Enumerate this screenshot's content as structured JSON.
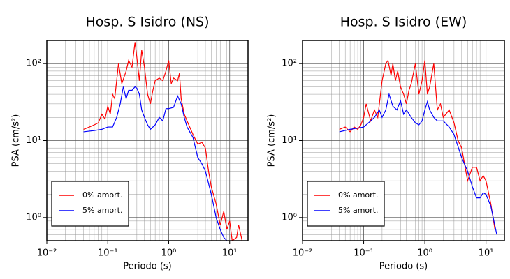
{
  "chart_data": [
    {
      "type": "line",
      "title": "Hosp. S Isidro (NS)",
      "x_label": "Periodo (s)",
      "y_label": "PSA (cm/s²)",
      "x_log": true,
      "y_log": true,
      "grid": true,
      "minor_grid": true,
      "legend": "lower left",
      "xlim": [
        0.01,
        20
      ],
      "ylim": [
        0.5,
        200
      ],
      "xticks": [
        {
          "value": 0.01,
          "label": "10⁻²"
        },
        {
          "value": 0.1,
          "label": "10⁻¹"
        },
        {
          "value": 1,
          "label": "10⁰"
        },
        {
          "value": 10,
          "label": "10¹"
        }
      ],
      "yticks": [
        {
          "value": 1,
          "label": "10⁰"
        },
        {
          "value": 10,
          "label": "10¹"
        },
        {
          "value": 100,
          "label": "10²"
        }
      ],
      "series": [
        {
          "name": "0% amort.",
          "color": "#ff0000",
          "x": [
            0.04,
            0.05,
            0.06,
            0.07,
            0.08,
            0.09,
            0.1,
            0.11,
            0.12,
            0.13,
            0.15,
            0.17,
            0.2,
            0.22,
            0.25,
            0.28,
            0.3,
            0.33,
            0.36,
            0.4,
            0.45,
            0.5,
            0.55,
            0.6,
            0.7,
            0.8,
            0.9,
            1.0,
            1.1,
            1.2,
            1.4,
            1.5,
            1.6,
            1.8,
            2.0,
            2.5,
            3.0,
            3.5,
            4.0,
            4.5,
            5.0,
            6.0,
            7.0,
            8.0,
            9.0,
            10,
            11,
            13,
            14,
            16
          ],
          "values": [
            14,
            15,
            16,
            17,
            22,
            19,
            28,
            22,
            40,
            35,
            100,
            55,
            80,
            110,
            90,
            190,
            120,
            60,
            150,
            90,
            40,
            30,
            45,
            60,
            65,
            60,
            80,
            110,
            55,
            65,
            60,
            75,
            35,
            22,
            18,
            12,
            9,
            9.5,
            8,
            4,
            2.5,
            1.5,
            0.8,
            1.2,
            0.7,
            0.9,
            0.5,
            0.55,
            0.8,
            0.5
          ]
        },
        {
          "name": "5% amort.",
          "color": "#0000ff",
          "x": [
            0.04,
            0.06,
            0.08,
            0.1,
            0.12,
            0.14,
            0.16,
            0.18,
            0.2,
            0.22,
            0.25,
            0.28,
            0.3,
            0.33,
            0.36,
            0.4,
            0.45,
            0.5,
            0.6,
            0.7,
            0.8,
            0.9,
            1.0,
            1.2,
            1.4,
            1.6,
            1.8,
            2.0,
            2.5,
            3.0,
            3.5,
            4.0,
            5.0,
            6.0,
            7.0,
            8.0,
            9.0
          ],
          "values": [
            13,
            13.5,
            14,
            15,
            15,
            20,
            30,
            50,
            35,
            45,
            45,
            50,
            48,
            40,
            25,
            20,
            16,
            14,
            16,
            20,
            18,
            26,
            26,
            27,
            38,
            30,
            20,
            15,
            11,
            6,
            5,
            4,
            2,
            1,
            0.7,
            0.55,
            0.5
          ]
        }
      ]
    },
    {
      "type": "line",
      "title": "Hosp. S Isidro (EW)",
      "x_label": "Periodo (s)",
      "y_label": "PSA (cm/s²)",
      "x_log": true,
      "y_log": true,
      "grid": true,
      "minor_grid": true,
      "legend": "lower left",
      "xlim": [
        0.01,
        20
      ],
      "ylim": [
        0.5,
        200
      ],
      "xticks": [
        {
          "value": 0.01,
          "label": "10⁻²"
        },
        {
          "value": 0.1,
          "label": "10⁻¹"
        },
        {
          "value": 1,
          "label": "10⁰"
        },
        {
          "value": 10,
          "label": "10¹"
        }
      ],
      "yticks": [
        {
          "value": 1,
          "label": "10⁰"
        },
        {
          "value": 10,
          "label": "10¹"
        },
        {
          "value": 100,
          "label": "10²"
        }
      ],
      "series": [
        {
          "name": "0% amort.",
          "color": "#ff0000",
          "x": [
            0.04,
            0.05,
            0.06,
            0.07,
            0.08,
            0.09,
            0.1,
            0.11,
            0.13,
            0.15,
            0.17,
            0.2,
            0.23,
            0.25,
            0.28,
            0.3,
            0.33,
            0.36,
            0.4,
            0.45,
            0.5,
            0.55,
            0.6,
            0.7,
            0.8,
            0.9,
            1.0,
            1.1,
            1.2,
            1.4,
            1.6,
            1.8,
            2.0,
            2.5,
            3.0,
            3.5,
            4.0,
            5.0,
            6.0,
            7.0,
            8.0,
            9.0,
            10,
            12,
            14
          ],
          "values": [
            14,
            15,
            13,
            15,
            14,
            16,
            20,
            30,
            18,
            25,
            20,
            60,
            100,
            110,
            70,
            100,
            60,
            80,
            50,
            40,
            30,
            45,
            55,
            100,
            40,
            60,
            110,
            40,
            50,
            100,
            25,
            30,
            20,
            25,
            17,
            10,
            8,
            3,
            4.5,
            4.5,
            3,
            3.5,
            3,
            1.5,
            0.7
          ]
        },
        {
          "name": "5% amort.",
          "color": "#0000ff",
          "x": [
            0.04,
            0.06,
            0.08,
            0.1,
            0.12,
            0.15,
            0.18,
            0.2,
            0.23,
            0.26,
            0.3,
            0.35,
            0.4,
            0.45,
            0.5,
            0.6,
            0.7,
            0.8,
            0.9,
            1.0,
            1.1,
            1.2,
            1.4,
            1.6,
            2.0,
            2.5,
            3.0,
            4.0,
            5.0,
            6.0,
            7.0,
            8.0,
            9.0,
            10,
            12,
            15
          ],
          "values": [
            13,
            14,
            14.5,
            15,
            17,
            20,
            25,
            20,
            25,
            40,
            28,
            25,
            33,
            22,
            25,
            20,
            17,
            16,
            18,
            25,
            32,
            25,
            20,
            18,
            18,
            15,
            12,
            6,
            4,
            2.5,
            1.8,
            1.8,
            2.1,
            2,
            1.4,
            0.6
          ]
        }
      ]
    }
  ]
}
